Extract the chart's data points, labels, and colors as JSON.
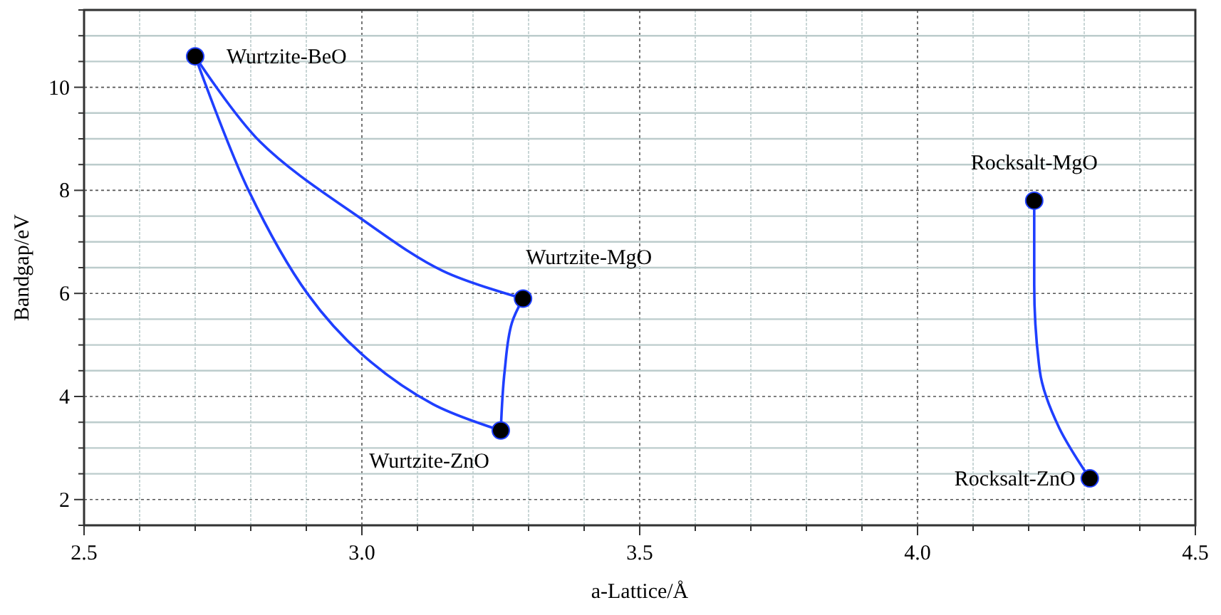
{
  "chart_data": {
    "type": "line",
    "xlabel": "a-Lattice/Å",
    "ylabel": "Bandgap/eV",
    "xlim": [
      2.5,
      4.5
    ],
    "ylim": [
      1.5,
      11.5
    ],
    "xticks": [
      {
        "value": 2.5,
        "label": "2.5"
      },
      {
        "value": 2.6,
        "label": null
      },
      {
        "value": 2.7,
        "label": null
      },
      {
        "value": 2.8,
        "label": null
      },
      {
        "value": 2.9,
        "label": null
      },
      {
        "value": 3.0,
        "label": "3.0"
      },
      {
        "value": 3.1,
        "label": null
      },
      {
        "value": 3.2,
        "label": null
      },
      {
        "value": 3.3,
        "label": null
      },
      {
        "value": 3.4,
        "label": null
      },
      {
        "value": 3.5,
        "label": "3.5"
      },
      {
        "value": 3.6,
        "label": null
      },
      {
        "value": 3.7,
        "label": null
      },
      {
        "value": 3.8,
        "label": null
      },
      {
        "value": 3.9,
        "label": null
      },
      {
        "value": 4.0,
        "label": "4.0"
      },
      {
        "value": 4.1,
        "label": null
      },
      {
        "value": 4.2,
        "label": null
      },
      {
        "value": 4.3,
        "label": null
      },
      {
        "value": 4.4,
        "label": null
      },
      {
        "value": 4.5,
        "label": "4.5"
      }
    ],
    "yticks": [
      {
        "value": 1.5,
        "label": null
      },
      2,
      {
        "value": 2.5,
        "label": null
      },
      {
        "value": 3,
        "label": null
      },
      {
        "value": 3.5,
        "label": null
      },
      4,
      {
        "value": 4.5,
        "label": null
      },
      {
        "value": 5,
        "label": null
      },
      {
        "value": 5.5,
        "label": null
      },
      6,
      {
        "value": 6.5,
        "label": null
      },
      {
        "value": 7,
        "label": null
      },
      {
        "value": 7.5,
        "label": null
      },
      8,
      {
        "value": 8.5,
        "label": null
      },
      {
        "value": 9,
        "label": null
      },
      {
        "value": 9.5,
        "label": null
      },
      10,
      {
        "value": 10.5,
        "label": null
      },
      {
        "value": 11,
        "label": null
      },
      {
        "value": 11.5,
        "label": null
      }
    ],
    "grid": true,
    "line_style": "solid",
    "series": [
      {
        "color": "#1f3fff",
        "marker": "none",
        "x": [
          2.7,
          2.817,
          3.0,
          3.145,
          3.29
        ],
        "values": [
          10.6,
          8.94,
          7.44,
          6.44,
          5.9
        ]
      },
      {
        "color": "#1f3fff",
        "marker": "none",
        "x": [
          2.7,
          2.796,
          2.903,
          3.0,
          3.128,
          3.25
        ],
        "values": [
          10.6,
          8.0,
          5.98,
          4.82,
          3.85,
          3.34
        ]
      },
      {
        "color": "#1f3fff",
        "marker": "none",
        "x": [
          3.25,
          3.257,
          3.27,
          3.29
        ],
        "values": [
          3.34,
          4.5,
          5.43,
          5.9
        ]
      },
      {
        "color": "#1f3fff",
        "marker": "none",
        "x": [
          4.21,
          4.21,
          4.22,
          4.255,
          4.31
        ],
        "values": [
          7.8,
          6.17,
          4.5,
          3.39,
          2.41
        ]
      },
      {
        "type": "scatter",
        "color": "#000000",
        "marker": "circle",
        "x": [
          2.7,
          3.29,
          3.25,
          4.21,
          4.31
        ],
        "values": [
          10.6,
          5.9,
          3.34,
          7.8,
          2.41
        ]
      }
    ],
    "annotations": [
      {
        "text": "Wurtzite-BeO",
        "x": 2.7,
        "y": 10.6
      },
      {
        "text": "Wurtzite-MgO",
        "x": 3.29,
        "y": 5.9
      },
      {
        "text": "Wurtzite-ZnO",
        "x": 3.25,
        "y": 3.34
      },
      {
        "text": "Rocksalt-MgO",
        "x": 4.21,
        "y": 7.8
      },
      {
        "text": "Rocksalt-ZnO",
        "x": 4.31,
        "y": 2.41
      }
    ]
  }
}
